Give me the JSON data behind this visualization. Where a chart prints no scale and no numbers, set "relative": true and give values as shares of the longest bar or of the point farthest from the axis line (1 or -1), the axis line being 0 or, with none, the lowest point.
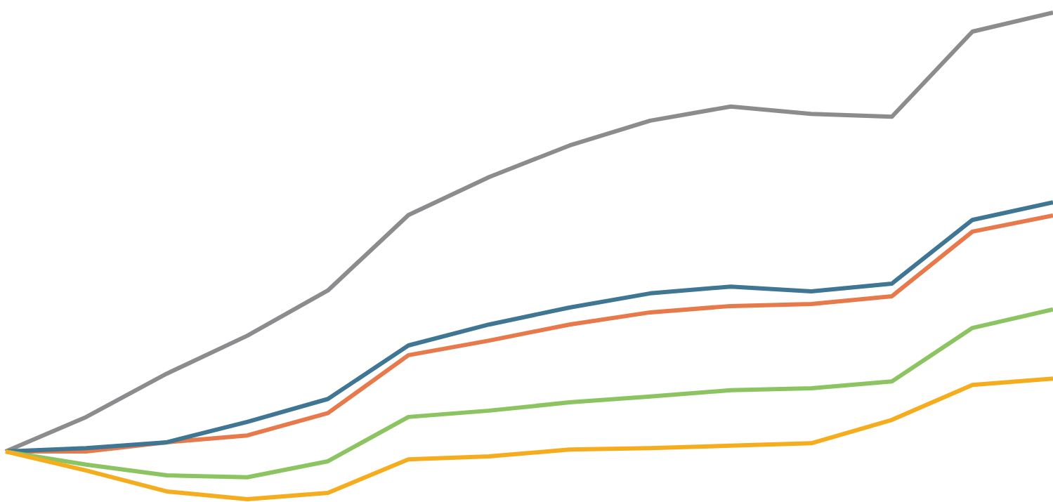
{
  "chart_data": {
    "type": "line",
    "relative": true,
    "categories": [
      null,
      null,
      null,
      null,
      null,
      null,
      null,
      null,
      null,
      null,
      null,
      null,
      null,
      null
    ],
    "marker": "none",
    "line_style": "solid",
    "series": [
      {
        "color": "#8c8c8e",
        "values": [
          0.098,
          0.169,
          0.258,
          0.336,
          0.429,
          0.584,
          0.662,
          0.727,
          0.778,
          0.807,
          0.792,
          0.786,
          0.961,
          1
        ]
      },
      {
        "color": "#e8794a",
        "values": [
          0.098,
          0.098,
          0.117,
          0.131,
          0.177,
          0.296,
          0.326,
          0.359,
          0.384,
          0.397,
          0.401,
          0.417,
          0.55,
          0.583
        ]
      },
      {
        "color": "#3f7693",
        "values": [
          0.098,
          0.105,
          0.117,
          0.159,
          0.206,
          0.316,
          0.359,
          0.394,
          0.423,
          0.437,
          0.427,
          0.443,
          0.574,
          0.61
        ]
      },
      {
        "color": "#8dc462",
        "values": [
          0.098,
          0.071,
          0.049,
          0.045,
          0.078,
          0.169,
          0.182,
          0.199,
          0.211,
          0.224,
          0.228,
          0.242,
          0.352,
          0.39
        ]
      },
      {
        "color": "#f5ad1d",
        "values": [
          0.098,
          0.059,
          0.016,
          0,
          0.013,
          0.082,
          0.088,
          0.102,
          0.105,
          0.11,
          0.115,
          0.163,
          0.235,
          0.248
        ]
      }
    ]
  }
}
